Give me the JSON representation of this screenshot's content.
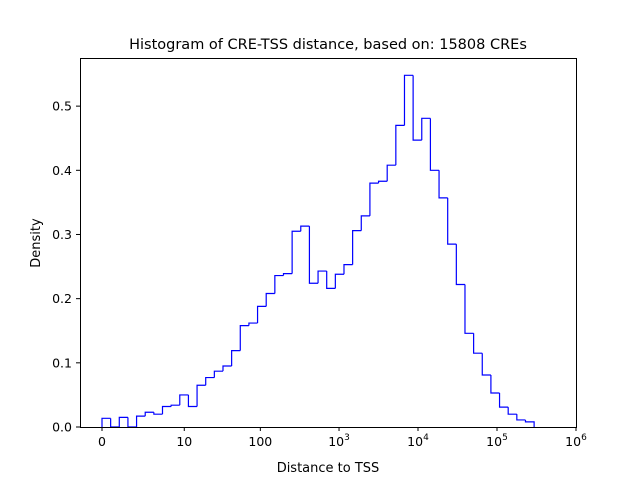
{
  "chart_data": {
    "type": "histogram-step",
    "title": "Histogram of CRE-TSS distance, based on: 15808 CREs",
    "xlabel": "Distance to TSS",
    "ylabel": "Density",
    "x_scale": "log10(distance+1)",
    "x_ticks": [
      {
        "value": 0,
        "label": "0",
        "sup": ""
      },
      {
        "value": 10,
        "label": "10",
        "sup": ""
      },
      {
        "value": 100,
        "label": "100",
        "sup": ""
      },
      {
        "value": 1000,
        "label": "10",
        "sup": "3"
      },
      {
        "value": 10000,
        "label": "10",
        "sup": "4"
      },
      {
        "value": 100000,
        "label": "10",
        "sup": "5"
      },
      {
        "value": 1000000,
        "label": "10",
        "sup": "6"
      }
    ],
    "y_ticks": [
      "0.0",
      "0.1",
      "0.2",
      "0.3",
      "0.4",
      "0.5"
    ],
    "ylim": [
      0,
      0.575
    ],
    "bin_range": [
      0,
      295000
    ],
    "n_bins": 50,
    "values": [
      0.0135,
      0,
      0.015,
      0,
      0.017,
      0.023,
      0.02,
      0.032,
      0.034,
      0.05,
      0.032,
      0.065,
      0.077,
      0.087,
      0.095,
      0.119,
      0.158,
      0.162,
      0.188,
      0.208,
      0.236,
      0.239,
      0.305,
      0.313,
      0.224,
      0.243,
      0.216,
      0.238,
      0.253,
      0.306,
      0.329,
      0.38,
      0.383,
      0.408,
      0.47,
      0.548,
      0.447,
      0.481,
      0.4,
      0.357,
      0.285,
      0.222,
      0.146,
      0.115,
      0.081,
      0.053,
      0.031,
      0.02,
      0.011,
      0.008
    ],
    "line_color": "#0000ff",
    "grid": false,
    "legend": "none"
  }
}
